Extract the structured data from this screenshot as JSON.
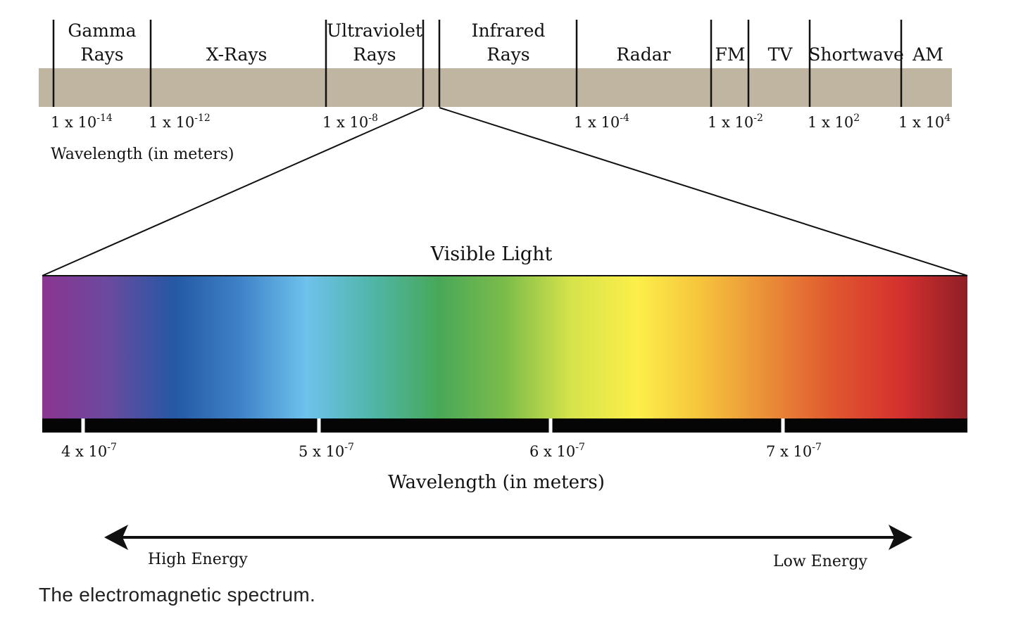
{
  "band_color": "#bfb5a0",
  "spectrum": {
    "regions": [
      {
        "id": "gamma",
        "lines": [
          "Gamma",
          "Rays"
        ]
      },
      {
        "id": "xray",
        "lines": [
          "X-Rays"
        ]
      },
      {
        "id": "uv",
        "lines": [
          "Ultraviolet",
          "Rays"
        ]
      },
      {
        "id": "ir",
        "lines": [
          "Infrared",
          "Rays"
        ]
      },
      {
        "id": "radar",
        "lines": [
          "Radar"
        ]
      },
      {
        "id": "fm",
        "lines": [
          "FM"
        ]
      },
      {
        "id": "tv",
        "lines": [
          "TV"
        ]
      },
      {
        "id": "shortwave",
        "lines": [
          "Shortwave"
        ]
      },
      {
        "id": "am",
        "lines": [
          "AM"
        ]
      }
    ],
    "ticks": [
      {
        "base": "1 x 10",
        "exp": "-14"
      },
      {
        "base": "1 x 10",
        "exp": "-12"
      },
      {
        "base": "1 x 10",
        "exp": "-8"
      },
      {
        "base": "1 x 10",
        "exp": "-4"
      },
      {
        "base": "1 x 10",
        "exp": "-2"
      },
      {
        "base": "1 x 10",
        "exp": "2"
      },
      {
        "base": "1 x 10",
        "exp": "4"
      }
    ],
    "axis_label": "Wavelength (in meters)"
  },
  "visible": {
    "title": "Visible Light",
    "gradient_colors": [
      "#8b3590",
      "#6a4a9f",
      "#2458a4",
      "#3f82c8",
      "#6ec2ec",
      "#4fb6a8",
      "#48a858",
      "#7bbc4a",
      "#d6e34a",
      "#fcef4a",
      "#f6c23c",
      "#e98c38",
      "#e0562f",
      "#d4302e",
      "#8e1f26"
    ],
    "ticks": [
      {
        "base": "4 x 10",
        "exp": "-7"
      },
      {
        "base": "5 x 10",
        "exp": "-7"
      },
      {
        "base": "6 x 10",
        "exp": "-7"
      },
      {
        "base": "7 x 10",
        "exp": "-7"
      }
    ],
    "axis_label": "Wavelength (in meters)"
  },
  "energy": {
    "left": "High Energy",
    "right": "Low Energy"
  },
  "caption": "The electromagnetic spectrum."
}
